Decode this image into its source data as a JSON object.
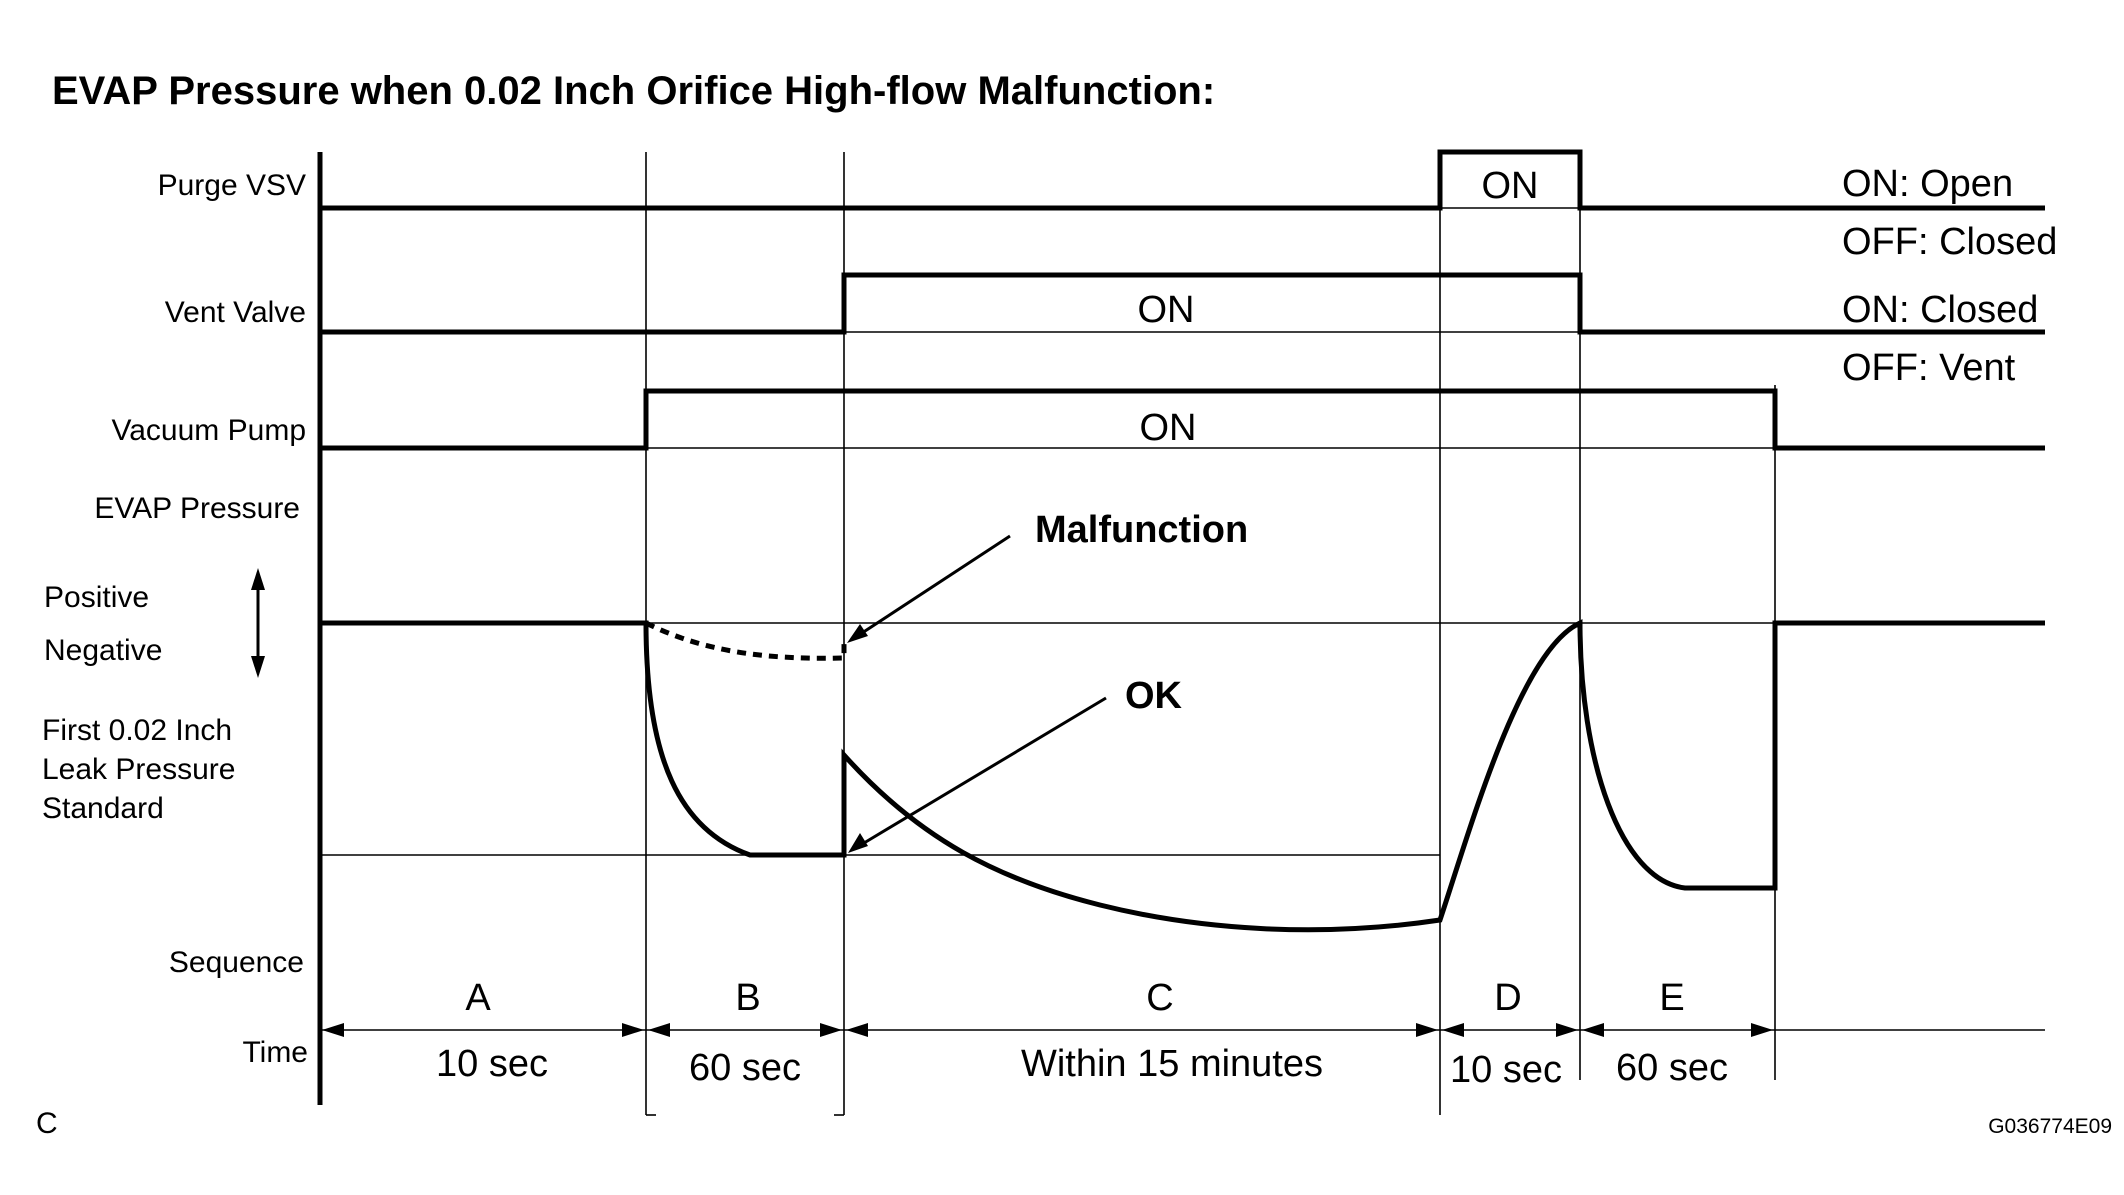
{
  "title": "EVAP Pressure when 0.02 Inch Orifice High-flow Malfunction:",
  "rows": {
    "purge_vsv": "Purge VSV",
    "vent_valve": "Vent Valve",
    "vacuum_pump": "Vacuum Pump",
    "evap_pressure": "EVAP Pressure",
    "positive": "Positive",
    "negative": "Negative",
    "leak_standard": [
      "First 0.02 Inch",
      "Leak Pressure",
      "Standard"
    ],
    "sequence": "Sequence",
    "time": "Time"
  },
  "states": {
    "purge_on": "ON",
    "vent_on": "ON",
    "pump_on": "ON"
  },
  "legend": {
    "purge_on": "ON: Open",
    "purge_off": "OFF: Closed",
    "vent_on": "ON: Closed",
    "vent_off": "OFF: Vent"
  },
  "annotations": {
    "malfunction": "Malfunction",
    "ok": "OK"
  },
  "sequence": [
    {
      "label": "A",
      "time": "10 sec"
    },
    {
      "label": "B",
      "time": "60 sec"
    },
    {
      "label": "C",
      "time": "Within 15 minutes"
    },
    {
      "label": "D",
      "time": "10 sec"
    },
    {
      "label": "E",
      "time": "60 sec"
    }
  ],
  "corner_mark": "C",
  "figure_id": "G036774E09"
}
